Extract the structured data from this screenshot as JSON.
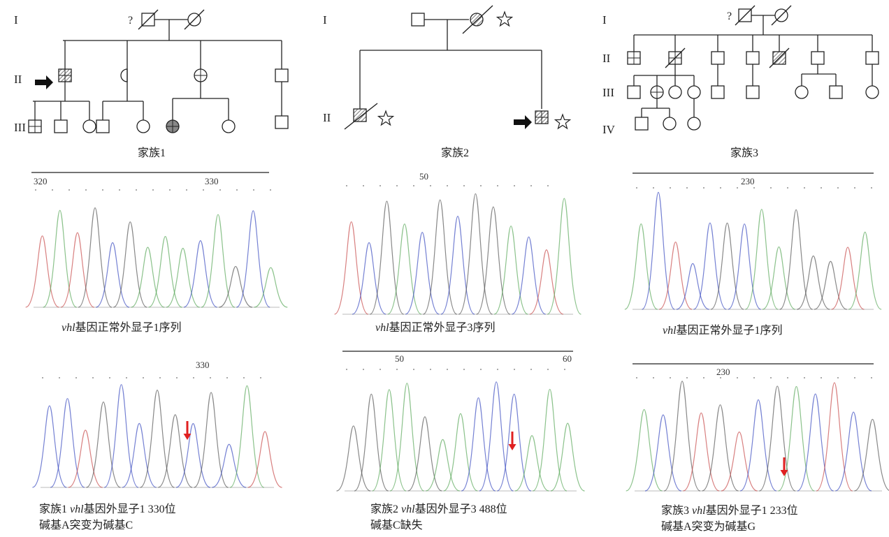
{
  "families": [
    {
      "label": "家族1",
      "generations": [
        "I",
        "II",
        "III"
      ],
      "unknown": "?",
      "normal": {
        "positions": [
          "320",
          "330"
        ],
        "caption": {
          "gene": "vhl",
          "text": "基因正常外显子1序列"
        }
      },
      "mutant": {
        "positions": [
          "330"
        ],
        "caption": {
          "family": "家族1",
          "gene": "vhl",
          "text": "基因外显子1 330位",
          "line2": "碱基A突变为碱基C"
        }
      }
    },
    {
      "label": "家族2",
      "generations": [
        "I",
        "II"
      ],
      "normal": {
        "positions": [
          "50"
        ],
        "caption": {
          "gene": "vhl",
          "text": "基因正常外显子3序列"
        }
      },
      "mutant": {
        "positions": [
          "50",
          "60"
        ],
        "caption": {
          "family": "家族2",
          "gene": "vhl",
          "text": "基因外显子3 488位",
          "line2": "碱基C缺失"
        }
      }
    },
    {
      "label": "家族3",
      "generations": [
        "I",
        "II",
        "III",
        "IV"
      ],
      "unknown": "?",
      "normal": {
        "positions": [
          "230"
        ],
        "caption": {
          "gene": "vhl",
          "text": "基因正常外显子1序列"
        }
      },
      "mutant": {
        "positions": [
          "230"
        ],
        "caption": {
          "family": "家族3",
          "gene": "vhl",
          "text": "基因外显子1 233位",
          "line2": "碱基A突变为碱基G"
        }
      }
    }
  ]
}
